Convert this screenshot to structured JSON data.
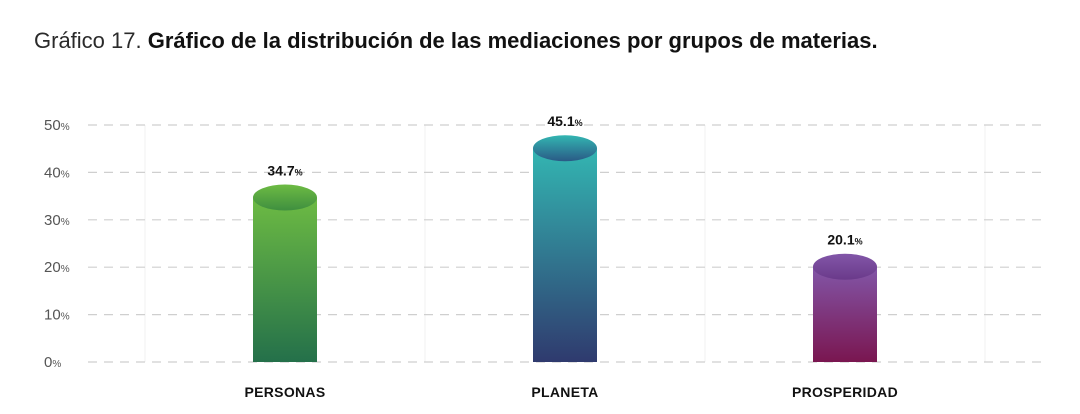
{
  "title": {
    "prefix": "Gráfico 17.",
    "main": "Gráfico de la distribución de las mediaciones por grupos de materias."
  },
  "chart_data": {
    "type": "bar",
    "categories": [
      "PERSONAS",
      "PLANETA",
      "PROSPERIDAD"
    ],
    "values": [
      34.7,
      45.1,
      20.1
    ],
    "value_labels": [
      "34.7",
      "45.1",
      "20.1"
    ],
    "value_unit": "%",
    "ylim": [
      0,
      50
    ],
    "yticks": [
      0,
      10,
      20,
      30,
      40,
      50
    ],
    "ytick_labels": [
      "0",
      "10",
      "20",
      "30",
      "40",
      "50"
    ],
    "ytick_unit": "%",
    "grid": true,
    "bar_style": "cylinder",
    "colors": [
      {
        "top": "#6dbb43",
        "bottom": "#24704a",
        "cap": "#3f8f3f"
      },
      {
        "top": "#33b6b2",
        "bottom": "#2f3a6e",
        "cap": "#2a5a86"
      },
      {
        "top": "#8256a8",
        "bottom": "#7a1650",
        "cap": "#6a3a8a"
      }
    ]
  }
}
